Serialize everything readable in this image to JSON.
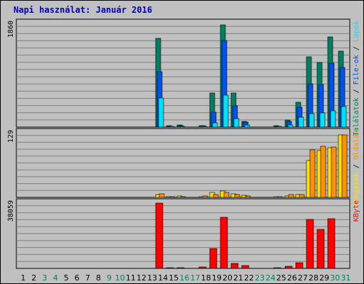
{
  "title": "Napi használat: Január 2016",
  "colors": {
    "background": "#c0c0c0",
    "grid": "#808080",
    "hits": "#00e0ff",
    "files": "#0050f0",
    "pages": "#008060",
    "visits": "#ffe000",
    "sites": "#ff9000",
    "kbytes": "#ff0000",
    "weekday": "#000000",
    "weekend": "#008060"
  },
  "chart_data": [
    {
      "type": "bar",
      "name": "hits-files-pages",
      "ylabel": "1860",
      "ymax": 1860,
      "legend": [
        {
          "text": "Találatok",
          "color": "#008060"
        },
        {
          "text": "File-ok",
          "color": "#0050f0"
        },
        {
          "text": "Lapok",
          "color": "#00e0ff"
        }
      ],
      "series": [
        {
          "name": "Találatok",
          "color": "#008060",
          "values": [
            0,
            0,
            0,
            0,
            0,
            0,
            0,
            0,
            0,
            0,
            0,
            0,
            0,
            1550,
            20,
            40,
            0,
            30,
            600,
            1780,
            590,
            100,
            0,
            0,
            20,
            120,
            430,
            1230,
            1130,
            1570,
            1330
          ]
        },
        {
          "name": "File-ok",
          "color": "#0050f0",
          "values": [
            0,
            0,
            0,
            0,
            0,
            0,
            0,
            0,
            0,
            0,
            0,
            0,
            0,
            970,
            15,
            30,
            0,
            20,
            260,
            1510,
            370,
            90,
            0,
            0,
            15,
            100,
            350,
            760,
            750,
            1110,
            1040
          ]
        },
        {
          "name": "Lapok",
          "color": "#00e0ff",
          "values": [
            0,
            0,
            0,
            0,
            0,
            0,
            0,
            0,
            0,
            0,
            0,
            0,
            0,
            510,
            5,
            10,
            0,
            5,
            80,
            560,
            150,
            40,
            0,
            0,
            5,
            40,
            170,
            240,
            250,
            290,
            360
          ]
        }
      ]
    },
    {
      "type": "bar",
      "name": "visits-sites",
      "ylabel": "129",
      "ymax": 129,
      "legend": [
        {
          "text": "Látogatók",
          "color": "#ffe000"
        },
        {
          "text": "Oldalak",
          "color": "#ff9000"
        }
      ],
      "series": [
        {
          "name": "Látogatók",
          "color": "#ffe000",
          "values": [
            0,
            0,
            0,
            0,
            0,
            0,
            0,
            0,
            0,
            0,
            0,
            0,
            0,
            5,
            1,
            3,
            0,
            1,
            10,
            12,
            7,
            4,
            0,
            0,
            1,
            3,
            6,
            70,
            90,
            95,
            120
          ]
        },
        {
          "name": "Oldalak",
          "color": "#ff9000",
          "values": [
            0,
            0,
            0,
            0,
            0,
            0,
            0,
            0,
            0,
            0,
            0,
            0,
            0,
            7,
            1,
            2,
            0,
            3,
            6,
            9,
            6,
            3,
            0,
            0,
            1,
            5,
            6,
            91,
            98,
            97,
            119
          ]
        }
      ]
    },
    {
      "type": "bar",
      "name": "kbytes",
      "ylabel": "38059",
      "ymax": 38059,
      "legend": [
        {
          "text": "KByte",
          "color": "#ff0000"
        }
      ],
      "series": [
        {
          "name": "KByte",
          "color": "#ff0000",
          "values": [
            0,
            0,
            0,
            0,
            0,
            0,
            0,
            0,
            0,
            0,
            0,
            0,
            0,
            36500,
            300,
            300,
            0,
            700,
            11000,
            28500,
            2800,
            1600,
            0,
            0,
            300,
            1000,
            3000,
            27300,
            21800,
            27600,
            0
          ]
        }
      ]
    }
  ],
  "days": [
    {
      "label": "1",
      "weekend": false
    },
    {
      "label": "2",
      "weekend": false
    },
    {
      "label": "3",
      "weekend": true
    },
    {
      "label": "4",
      "weekend": true
    },
    {
      "label": "5",
      "weekend": false
    },
    {
      "label": "6",
      "weekend": false
    },
    {
      "label": "7",
      "weekend": false
    },
    {
      "label": "8",
      "weekend": false
    },
    {
      "label": "9",
      "weekend": true
    },
    {
      "label": "10",
      "weekend": true
    },
    {
      "label": "11",
      "weekend": false
    },
    {
      "label": "12",
      "weekend": false
    },
    {
      "label": "13",
      "weekend": false
    },
    {
      "label": "14",
      "weekend": false
    },
    {
      "label": "15",
      "weekend": false
    },
    {
      "label": "16",
      "weekend": true
    },
    {
      "label": "17",
      "weekend": true
    },
    {
      "label": "18",
      "weekend": false
    },
    {
      "label": "19",
      "weekend": false
    },
    {
      "label": "20",
      "weekend": false
    },
    {
      "label": "21",
      "weekend": false
    },
    {
      "label": "22",
      "weekend": false
    },
    {
      "label": "23",
      "weekend": true
    },
    {
      "label": "24",
      "weekend": true
    },
    {
      "label": "25",
      "weekend": false
    },
    {
      "label": "26",
      "weekend": false
    },
    {
      "label": "27",
      "weekend": false
    },
    {
      "label": "28",
      "weekend": false
    },
    {
      "label": "29",
      "weekend": false
    },
    {
      "label": "30",
      "weekend": true
    },
    {
      "label": "31",
      "weekend": true
    }
  ]
}
